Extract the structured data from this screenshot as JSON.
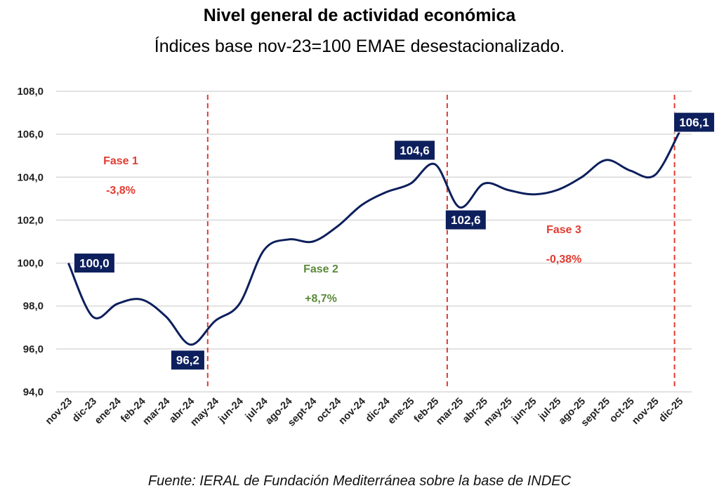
{
  "chart_data": {
    "type": "line",
    "title": "Nivel general de actividad económica",
    "subtitle": "Índices base nov-23=100 EMAE desestacionalizado.",
    "source": "Fuente: IERAL de Fundación Mediterránea sobre la base de INDEC",
    "xlabel": "",
    "ylabel": "",
    "ylim": [
      94,
      108
    ],
    "yticks": [
      "94,0",
      "96,0",
      "98,0",
      "100,0",
      "102,0",
      "104,0",
      "106,0",
      "108,0"
    ],
    "grid": true,
    "categories": [
      "nov-23",
      "dic-23",
      "ene-24",
      "feb-24",
      "mar-24",
      "abr-24",
      "may-24",
      "jun-24",
      "jul-24",
      "ago-24",
      "sept-24",
      "oct-24",
      "nov-24",
      "dic-24",
      "ene-25",
      "feb-25",
      "mar-25",
      "abr-25",
      "may-25",
      "jun-25",
      "jul-25",
      "ago-25",
      "sept-25",
      "oct-25",
      "nov-25",
      "dic-25"
    ],
    "series": [
      {
        "name": "EMAE desestacionalizado",
        "color": "#0d1f5c",
        "values": [
          100.0,
          97.5,
          98.1,
          98.3,
          97.5,
          96.2,
          97.3,
          98.1,
          100.6,
          101.1,
          101.0,
          101.7,
          102.7,
          103.3,
          103.7,
          104.6,
          102.6,
          103.7,
          103.4,
          103.2,
          103.4,
          104.0,
          104.8,
          104.3,
          104.1,
          106.1
        ]
      }
    ],
    "data_labels": [
      {
        "category": "nov-23",
        "text": "100,0"
      },
      {
        "category": "abr-24",
        "text": "96,2"
      },
      {
        "category": "feb-25",
        "text": "104,6"
      },
      {
        "category": "mar-25",
        "text": "102,6"
      },
      {
        "category": "dic-25",
        "text": "106,1"
      }
    ],
    "phases": [
      {
        "name": "Fase 1",
        "change": "-3,8%",
        "color": "#e03c31"
      },
      {
        "name": "Fase 2",
        "change": "+8,7%",
        "color": "#5a8a3a"
      },
      {
        "name": "Fase 3",
        "change": "-0,38%",
        "color": "#e03c31"
      }
    ],
    "divider_color": "#e03c31"
  }
}
